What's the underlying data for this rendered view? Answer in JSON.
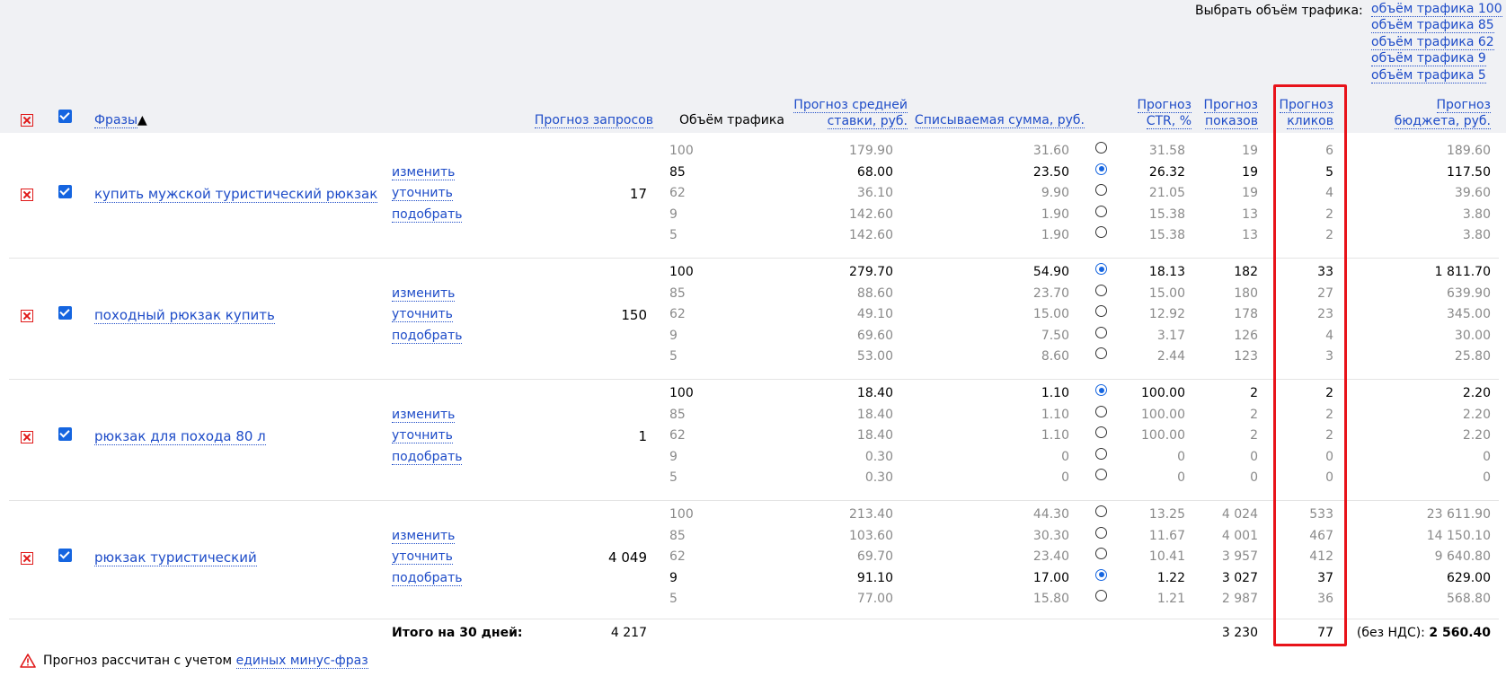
{
  "header": {
    "choose_label": "Выбрать объём трафика:",
    "volume_links": [
      "объём трафика 100",
      "объём трафика 85",
      "объём трафика 62",
      "объём трафика 9",
      "объём трафика 5"
    ],
    "columns": {
      "phrases": "Фразы",
      "sort_arrow": "▲",
      "requests": "Прогноз запросов",
      "traffic": "Объём трафика",
      "avg_bid_1": "Прогноз средней",
      "avg_bid_2": "ставки, руб.",
      "charged": "Списываемая сумма, руб.",
      "ctr_1": "Прогноз",
      "ctr_2": "CTR, %",
      "impressions_1": "Прогноз",
      "impressions_2": "показов",
      "clicks_1": "Прогноз",
      "clicks_2": "кликов",
      "budget_1": "Прогноз",
      "budget_2": "бюджета, руб."
    }
  },
  "actions": {
    "change": "изменить",
    "refine": "уточнить",
    "pick": "подобрать"
  },
  "groups": [
    {
      "phrase": "купить мужской туристический рюкзак",
      "requests": "17",
      "rows": [
        {
          "traffic": "100",
          "bid": "179.90",
          "charged": "31.60",
          "ctr": "31.58",
          "shows": "19",
          "clicks": "6",
          "budget": "189.60",
          "selected": false
        },
        {
          "traffic": "85",
          "bid": "68.00",
          "charged": "23.50",
          "ctr": "26.32",
          "shows": "19",
          "clicks": "5",
          "budget": "117.50",
          "selected": true
        },
        {
          "traffic": "62",
          "bid": "36.10",
          "charged": "9.90",
          "ctr": "21.05",
          "shows": "19",
          "clicks": "4",
          "budget": "39.60",
          "selected": false
        },
        {
          "traffic": "9",
          "bid": "142.60",
          "charged": "1.90",
          "ctr": "15.38",
          "shows": "13",
          "clicks": "2",
          "budget": "3.80",
          "selected": false
        },
        {
          "traffic": "5",
          "bid": "142.60",
          "charged": "1.90",
          "ctr": "15.38",
          "shows": "13",
          "clicks": "2",
          "budget": "3.80",
          "selected": false
        }
      ]
    },
    {
      "phrase": "походный рюкзак купить",
      "requests": "150",
      "rows": [
        {
          "traffic": "100",
          "bid": "279.70",
          "charged": "54.90",
          "ctr": "18.13",
          "shows": "182",
          "clicks": "33",
          "budget": "1 811.70",
          "selected": true
        },
        {
          "traffic": "85",
          "bid": "88.60",
          "charged": "23.70",
          "ctr": "15.00",
          "shows": "180",
          "clicks": "27",
          "budget": "639.90",
          "selected": false
        },
        {
          "traffic": "62",
          "bid": "49.10",
          "charged": "15.00",
          "ctr": "12.92",
          "shows": "178",
          "clicks": "23",
          "budget": "345.00",
          "selected": false
        },
        {
          "traffic": "9",
          "bid": "69.60",
          "charged": "7.50",
          "ctr": "3.17",
          "shows": "126",
          "clicks": "4",
          "budget": "30.00",
          "selected": false
        },
        {
          "traffic": "5",
          "bid": "53.00",
          "charged": "8.60",
          "ctr": "2.44",
          "shows": "123",
          "clicks": "3",
          "budget": "25.80",
          "selected": false
        }
      ]
    },
    {
      "phrase": "рюкзак для похода 80 л",
      "requests": "1",
      "rows": [
        {
          "traffic": "100",
          "bid": "18.40",
          "charged": "1.10",
          "ctr": "100.00",
          "shows": "2",
          "clicks": "2",
          "budget": "2.20",
          "selected": true
        },
        {
          "traffic": "85",
          "bid": "18.40",
          "charged": "1.10",
          "ctr": "100.00",
          "shows": "2",
          "clicks": "2",
          "budget": "2.20",
          "selected": false
        },
        {
          "traffic": "62",
          "bid": "18.40",
          "charged": "1.10",
          "ctr": "100.00",
          "shows": "2",
          "clicks": "2",
          "budget": "2.20",
          "selected": false
        },
        {
          "traffic": "9",
          "bid": "0.30",
          "charged": "0",
          "ctr": "0",
          "shows": "0",
          "clicks": "0",
          "budget": "0",
          "selected": false
        },
        {
          "traffic": "5",
          "bid": "0.30",
          "charged": "0",
          "ctr": "0",
          "shows": "0",
          "clicks": "0",
          "budget": "0",
          "selected": false
        }
      ]
    },
    {
      "phrase": "рюкзак туристический",
      "requests": "4 049",
      "rows": [
        {
          "traffic": "100",
          "bid": "213.40",
          "charged": "44.30",
          "ctr": "13.25",
          "shows": "4 024",
          "clicks": "533",
          "budget": "23 611.90",
          "selected": false
        },
        {
          "traffic": "85",
          "bid": "103.60",
          "charged": "30.30",
          "ctr": "11.67",
          "shows": "4 001",
          "clicks": "467",
          "budget": "14 150.10",
          "selected": false
        },
        {
          "traffic": "62",
          "bid": "69.70",
          "charged": "23.40",
          "ctr": "10.41",
          "shows": "3 957",
          "clicks": "412",
          "budget": "9 640.80",
          "selected": false
        },
        {
          "traffic": "9",
          "bid": "91.10",
          "charged": "17.00",
          "ctr": "1.22",
          "shows": "3 027",
          "clicks": "37",
          "budget": "629.00",
          "selected": true
        },
        {
          "traffic": "5",
          "bid": "77.00",
          "charged": "15.80",
          "ctr": "1.21",
          "shows": "2 987",
          "clicks": "36",
          "budget": "568.80",
          "selected": false
        }
      ]
    }
  ],
  "totals": {
    "label": "Итого на 30 дней:",
    "requests": "4 217",
    "shows": "3 230",
    "clicks": "77",
    "budget_prefix": "(без НДС):",
    "budget": "2 560.40"
  },
  "footer": {
    "note": "Прогноз рассчитан с учетом",
    "link": "единых минус-фраз"
  },
  "colors": {
    "link": "#1e4cc8",
    "accent": "#1565e0",
    "highlight": "#e8131a",
    "muted": "#8a8a8a",
    "header_bg": "#f0f1f4"
  }
}
